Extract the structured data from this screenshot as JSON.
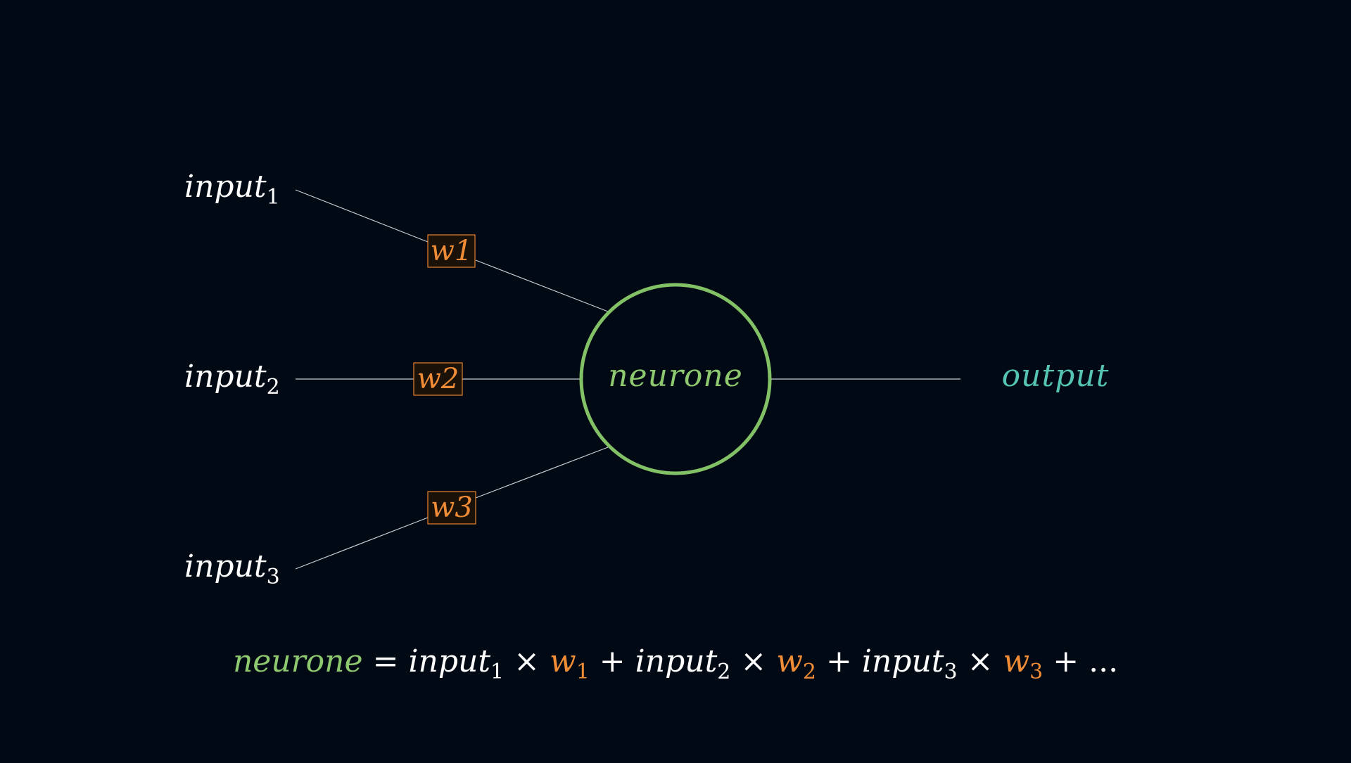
{
  "colors": {
    "background": "#010a14",
    "edge": "#c8ccd2",
    "neuron": "#82c166",
    "weight": "#f08c36",
    "output": "#55c4b2",
    "text": "#ffffff"
  },
  "inputs": [
    {
      "base": "input",
      "sub": "1"
    },
    {
      "base": "input",
      "sub": "2"
    },
    {
      "base": "input",
      "sub": "3"
    }
  ],
  "weights": [
    "w1",
    "w2",
    "w3"
  ],
  "neuron": {
    "label": "neurone"
  },
  "output": {
    "label": "output"
  },
  "formula": {
    "lhs": "neurone",
    "equals": "=",
    "terms": [
      {
        "input": "input",
        "input_sub": "1",
        "times": "×",
        "weight": "w",
        "weight_sub": "1",
        "plus": "+"
      },
      {
        "input": "input",
        "input_sub": "2",
        "times": "×",
        "weight": "w",
        "weight_sub": "2",
        "plus": "+"
      },
      {
        "input": "input",
        "input_sub": "3",
        "times": "×",
        "weight": "w",
        "weight_sub": "3",
        "plus": "+"
      }
    ],
    "ellipsis": "..."
  }
}
